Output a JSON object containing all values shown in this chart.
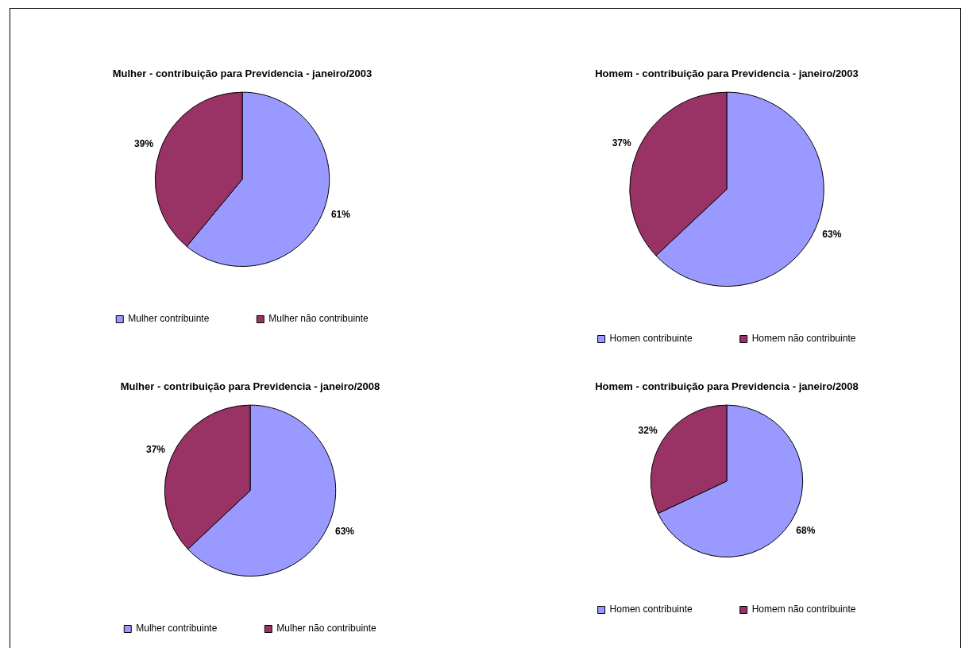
{
  "chart_data": [
    {
      "type": "pie",
      "title": "Mulher - contribuição para Previdencia - janeiro/2003",
      "categories": [
        "Mulher contribuinte",
        "Mulher não contribuinte"
      ],
      "values": [
        61,
        39
      ],
      "value_labels": [
        "61%",
        "39%"
      ],
      "colors": [
        "#9999ff",
        "#993366"
      ],
      "legend": "bottom"
    },
    {
      "type": "pie",
      "title": "Homem - contribuição para Previdencia - janeiro/2003",
      "categories": [
        "Homen contribuinte",
        "Homem não contribuinte"
      ],
      "values": [
        63,
        37
      ],
      "value_labels": [
        "63%",
        "37%"
      ],
      "colors": [
        "#9999ff",
        "#993366"
      ],
      "legend": "bottom"
    },
    {
      "type": "pie",
      "title": "Mulher - contribuição para Previdencia - janeiro/2008",
      "categories": [
        "Mulher contribuinte",
        "Mulher não contribuinte"
      ],
      "values": [
        63,
        37
      ],
      "value_labels": [
        "63%",
        "37%"
      ],
      "colors": [
        "#9999ff",
        "#993366"
      ],
      "legend": "bottom"
    },
    {
      "type": "pie",
      "title": "Homem - contribuição para Previdencia - janeiro/2008",
      "categories": [
        "Homen contribuinte",
        "Homem não contribuinte"
      ],
      "values": [
        68,
        32
      ],
      "value_labels": [
        "68%",
        "32%"
      ],
      "colors": [
        "#9999ff",
        "#993366"
      ],
      "legend": "bottom"
    }
  ]
}
